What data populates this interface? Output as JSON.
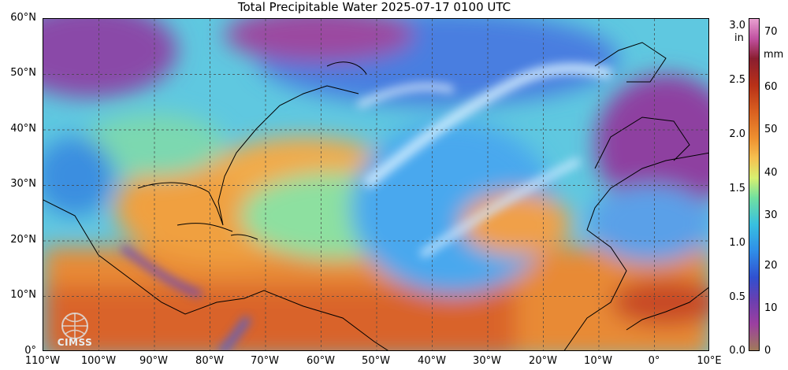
{
  "title": "Total Precipitable Water  2025-07-17 0100 UTC",
  "map": {
    "lat_labels": [
      "60°N",
      "50°N",
      "40°N",
      "30°N",
      "20°N",
      "10°N",
      "0°"
    ],
    "lon_labels": [
      "110°W",
      "100°W",
      "90°W",
      "80°W",
      "70°W",
      "60°W",
      "50°W",
      "40°W",
      "30°W",
      "20°W",
      "10°W",
      "0°",
      "10°E"
    ],
    "extent": {
      "lon_min": -110,
      "lon_max": 10,
      "lat_min": 0,
      "lat_max": 60
    },
    "gridlines": "dashed"
  },
  "colorbar": {
    "in_unit": "in",
    "mm_unit": "mm",
    "in_ticks": [
      "3.0",
      "2.5",
      "2.0",
      "1.5",
      "1.0",
      "0.5",
      "0.0"
    ],
    "in_values": [
      3.0,
      2.5,
      2.0,
      1.5,
      1.0,
      0.5,
      0.0
    ],
    "mm_ticks": [
      "70",
      "60",
      "50",
      "40",
      "30",
      "20",
      "10",
      "0"
    ],
    "mm_values": [
      70,
      60,
      50,
      40,
      30,
      20,
      10,
      0
    ],
    "range_mm": [
      0,
      78
    ]
  },
  "logo": {
    "text": "CIMSS"
  }
}
